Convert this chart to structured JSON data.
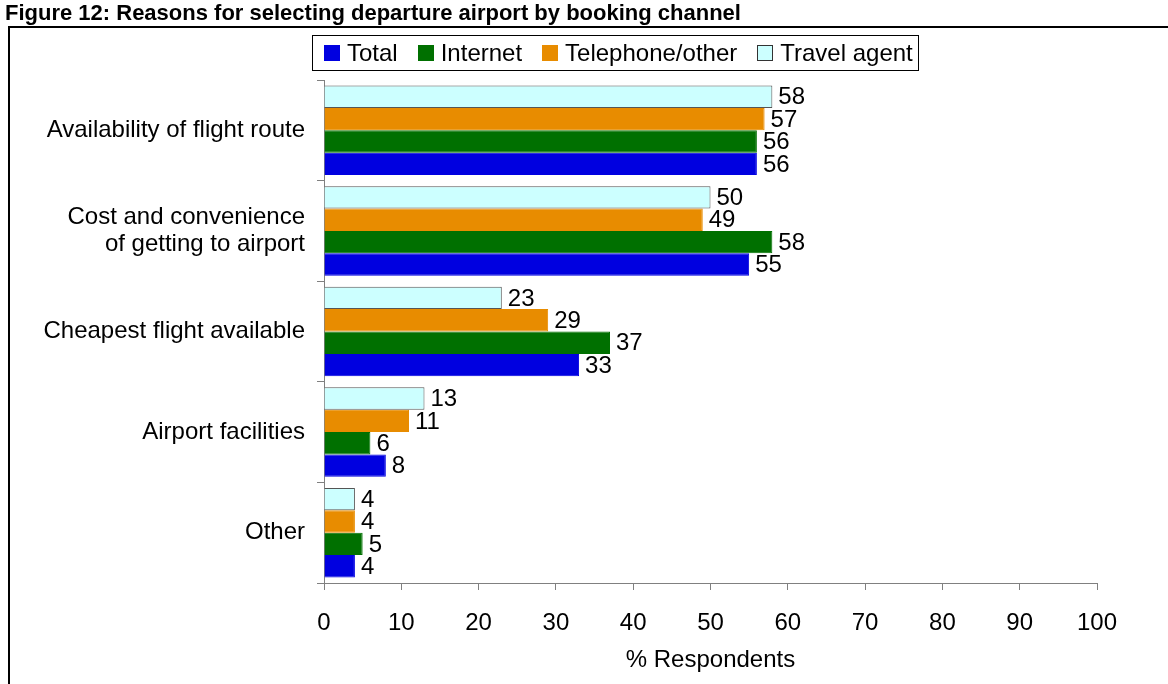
{
  "chart_data": {
    "type": "bar",
    "orientation": "horizontal",
    "title": "Figure 12: Reasons for selecting departure airport by booking channel",
    "xlabel": "% Respondents",
    "categories": [
      "Availability of flight route",
      "Cost and convenience of getting to airport",
      "Cheapest flight available",
      "Airport facilities",
      "Other"
    ],
    "series": [
      {
        "name": "Total",
        "color": "#0000e0",
        "values": [
          56,
          55,
          33,
          8,
          4
        ]
      },
      {
        "name": "Internet",
        "color": "#007000",
        "values": [
          56,
          58,
          37,
          6,
          5
        ]
      },
      {
        "name": "Telephone/other",
        "color": "#e88c00",
        "values": [
          57,
          49,
          29,
          11,
          4
        ]
      },
      {
        "name": "Travel agent",
        "color": "#ccffff",
        "values": [
          58,
          50,
          23,
          13,
          4
        ]
      }
    ],
    "xlim": [
      0,
      100
    ],
    "xticks": [
      0,
      10,
      20,
      30,
      40,
      50,
      60,
      70,
      80,
      90,
      100
    ],
    "grid": false,
    "legend": "top",
    "data_labels": true
  }
}
